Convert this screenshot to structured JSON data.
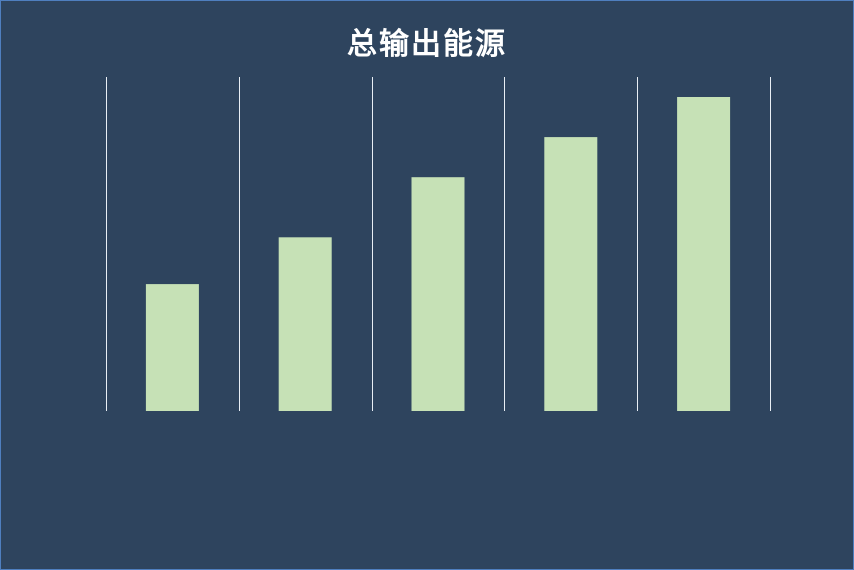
{
  "chart_data": {
    "type": "bar",
    "title": "总输出能源",
    "categories": [
      "",
      "",
      "",
      "",
      ""
    ],
    "values": [
      38,
      52,
      70,
      82,
      94
    ],
    "ylim": [
      0,
      100
    ],
    "grid": "vertical",
    "legend": "none",
    "colors": {
      "background": "#2e445e",
      "bar": "#c6e1b6",
      "grid": "#e8eef5",
      "title": "#ffffff",
      "border": "#4f7fbf"
    }
  }
}
